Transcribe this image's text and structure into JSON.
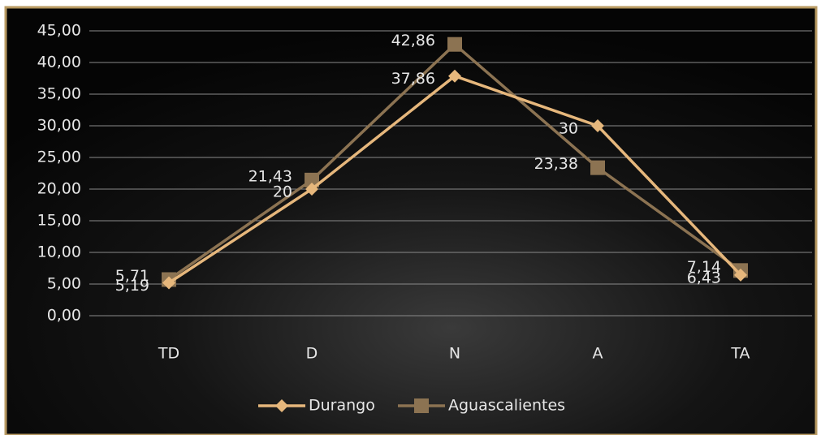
{
  "chart_data": {
    "type": "line",
    "categories": [
      "TD",
      "D",
      "N",
      "A",
      "TA"
    ],
    "series": [
      {
        "name": "Durango",
        "color": "#e6b77c",
        "marker": "diamond",
        "values": [
          5.19,
          20,
          37.86,
          30,
          6.43
        ],
        "value_labels": [
          "5,19",
          "20",
          "37,86",
          "30",
          "6,43"
        ]
      },
      {
        "name": "Aguascalientes",
        "color": "#8c7352",
        "marker": "square",
        "values": [
          5.71,
          21.43,
          42.86,
          23.38,
          7.14
        ],
        "value_labels": [
          "5,71",
          "21,43",
          "42,86",
          "23,38",
          "7,14"
        ]
      }
    ],
    "ylim": [
      0,
      45
    ],
    "yticks": [
      {
        "value": 0,
        "label": "0,00"
      },
      {
        "value": 5,
        "label": "5,00"
      },
      {
        "value": 10,
        "label": "10,00"
      },
      {
        "value": 15,
        "label": "15,00"
      },
      {
        "value": 20,
        "label": "20,00"
      },
      {
        "value": 25,
        "label": "25,00"
      },
      {
        "value": 30,
        "label": "30,00"
      },
      {
        "value": 35,
        "label": "35,00"
      },
      {
        "value": 40,
        "label": "40,00"
      },
      {
        "value": 45,
        "label": "45,00"
      }
    ],
    "grid": true,
    "legend": "bottom"
  }
}
